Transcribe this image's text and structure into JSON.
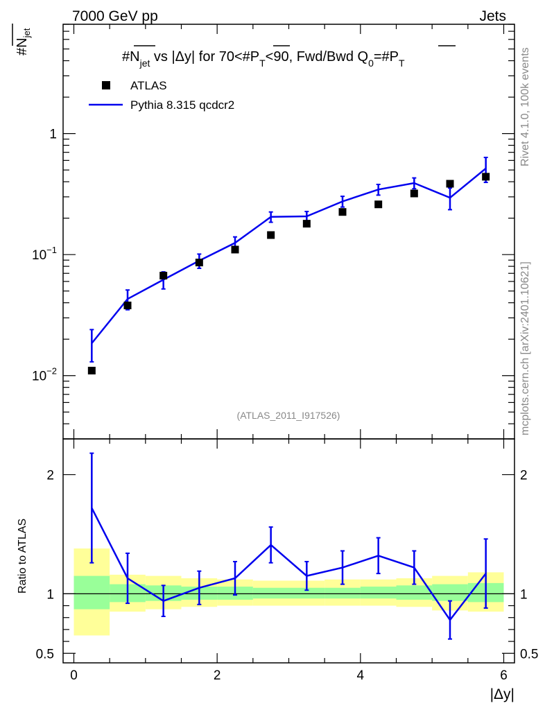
{
  "header": {
    "left": "7000 GeV pp",
    "right": "Jets"
  },
  "side": {
    "rivet": "Rivet 4.1.0,  100k events",
    "mcplots": "mcplots.cern.ch [arXiv:2401.10621]"
  },
  "colors": {
    "mc": "#0000ee",
    "band_outer": "#ffff99",
    "band_inner": "#99ff99",
    "data": "#000000"
  },
  "chart_data": {
    "type": "line",
    "title_parts": {
      "a": "#",
      "b": "N",
      "c": "jet",
      "d": " vs |Δy| for 70<#",
      "e": "P",
      "f": "T",
      "g": "<90, Fwd/Bwd Q",
      "h": "0",
      "i": "=#",
      "j": "P",
      "k": "T"
    },
    "ylabel_main": {
      "a": "#",
      "b": "N",
      "c": "jet"
    },
    "ylabel_ratio": "Ratio to ATLAS",
    "xlabel": "|Δy|",
    "watermark": "(ATLAS_2011_I917526)",
    "xlim": [
      -0.15,
      6.15
    ],
    "ylim_main": [
      0.003,
      8
    ],
    "ylim_ratio": [
      0.42,
      2.3
    ],
    "x_ticks": [
      0,
      2,
      4,
      6
    ],
    "x_tick_labels": [
      "0",
      "2",
      "4",
      "6"
    ],
    "y_main_ticks": [
      {
        "value": 0.01,
        "base": "10",
        "exp": "−2"
      },
      {
        "value": 0.1,
        "base": "10",
        "exp": "−1"
      },
      {
        "value": 1,
        "base": "1",
        "exp": ""
      }
    ],
    "y_ratio_ticks": [
      0.5,
      1,
      2
    ],
    "y_ratio_tick_labels": [
      "0.5",
      "1",
      "2"
    ],
    "legend": [
      {
        "label": "ATLAS",
        "kind": "marker"
      },
      {
        "label": "Pythia 8.315 qcdcr2",
        "kind": "line"
      }
    ],
    "bins": [
      [
        0,
        0.5
      ],
      [
        0.5,
        1
      ],
      [
        1,
        1.5
      ],
      [
        1.5,
        2
      ],
      [
        2,
        2.5
      ],
      [
        2.5,
        3
      ],
      [
        3,
        3.5
      ],
      [
        3.5,
        4
      ],
      [
        4,
        4.5
      ],
      [
        4.5,
        5
      ],
      [
        5,
        5.5
      ],
      [
        5.5,
        6
      ]
    ],
    "x": [
      0.25,
      0.75,
      1.25,
      1.75,
      2.25,
      2.75,
      3.25,
      3.75,
      4.25,
      4.75,
      5.25,
      5.75
    ],
    "series": [
      {
        "name": "ATLAS",
        "values": [
          0.011,
          0.038,
          0.067,
          0.086,
          0.11,
          0.145,
          0.18,
          0.225,
          0.26,
          0.32,
          0.385,
          0.44
        ]
      },
      {
        "name": "Pythia 8.315 qcdcr2",
        "values": [
          0.0185,
          0.043,
          0.062,
          0.089,
          0.125,
          0.205,
          0.207,
          0.275,
          0.345,
          0.39,
          0.295,
          0.515
        ],
        "err_low": [
          0.0055,
          0.008,
          0.01,
          0.012,
          0.015,
          0.02,
          0.02,
          0.028,
          0.035,
          0.04,
          0.06,
          0.12
        ],
        "err_high": [
          0.0055,
          0.008,
          0.01,
          0.012,
          0.015,
          0.02,
          0.02,
          0.028,
          0.035,
          0.04,
          0.06,
          0.12
        ]
      }
    ],
    "ratio": {
      "values": [
        1.72,
        1.13,
        0.94,
        1.05,
        1.13,
        1.41,
        1.15,
        1.22,
        1.32,
        1.22,
        0.78,
        1.17
      ],
      "err": [
        0.46,
        0.21,
        0.13,
        0.14,
        0.14,
        0.15,
        0.12,
        0.14,
        0.15,
        0.14,
        0.16,
        0.29
      ],
      "band_outer_low": [
        0.65,
        0.85,
        0.87,
        0.89,
        0.9,
        0.9,
        0.9,
        0.9,
        0.9,
        0.89,
        0.86,
        0.85
      ],
      "band_outer_high": [
        1.38,
        1.16,
        1.15,
        1.13,
        1.12,
        1.11,
        1.11,
        1.12,
        1.12,
        1.13,
        1.15,
        1.18
      ],
      "band_inner_low": [
        0.87,
        0.93,
        0.94,
        0.95,
        0.95,
        0.96,
        0.96,
        0.96,
        0.96,
        0.95,
        0.94,
        0.93
      ],
      "band_inner_high": [
        1.15,
        1.08,
        1.07,
        1.06,
        1.06,
        1.05,
        1.05,
        1.05,
        1.06,
        1.07,
        1.08,
        1.09
      ]
    }
  }
}
